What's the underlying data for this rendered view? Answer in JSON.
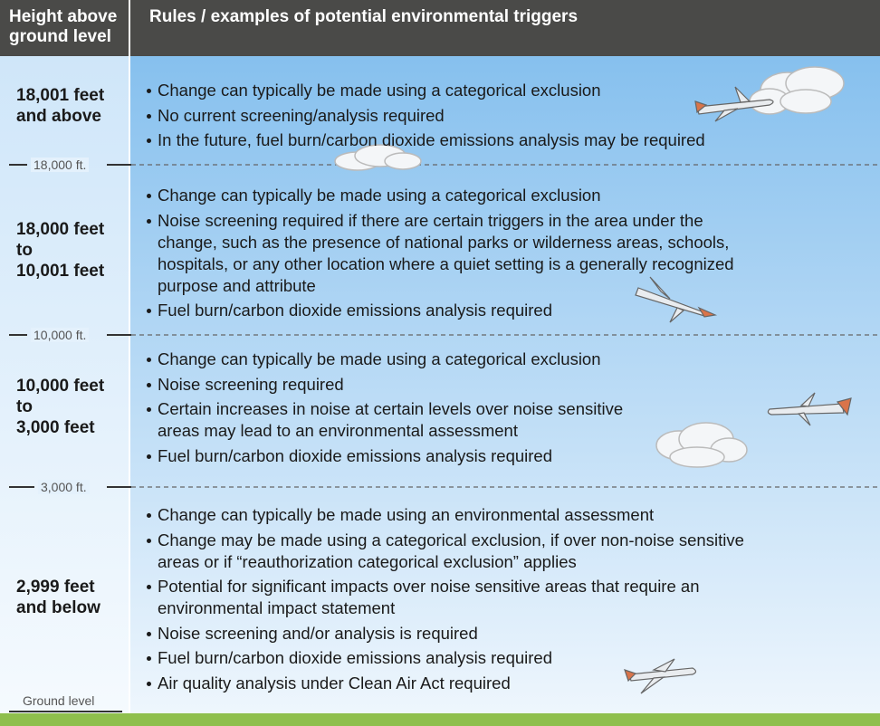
{
  "header": {
    "height_column": [
      "Height above",
      "ground level"
    ],
    "rules_column": "Rules / examples of potential environmental triggers"
  },
  "rows": [
    {
      "height": [
        "18,001 feet",
        "and above"
      ],
      "bullets": [
        [
          "Change can typically be made using a categorical exclusion"
        ],
        [
          "No current screening/analysis required"
        ],
        [
          "In the future, fuel burn/carbon dioxide emissions analysis may be required"
        ]
      ]
    },
    {
      "height": [
        "18,000 feet",
        "to",
        "10,001 feet"
      ],
      "bullets": [
        [
          "Change can typically be made using a categorical exclusion"
        ],
        [
          "Noise screening required if there are certain triggers in the area under the",
          "change, such as the presence of national parks or wilderness areas, schools,",
          "hospitals, or any other location where a quiet setting is a generally recognized",
          "purpose and attribute"
        ],
        [
          "Fuel burn/carbon dioxide emissions analysis required"
        ]
      ]
    },
    {
      "height": [
        "10,000 feet",
        "to",
        "3,000 feet"
      ],
      "bullets": [
        [
          "Change can typically be made using a categorical exclusion"
        ],
        [
          "Noise screening required"
        ],
        [
          "Certain increases in noise at certain levels over noise sensitive",
          "areas may lead to an environmental assessment"
        ],
        [
          "Fuel burn/carbon dioxide emissions analysis required"
        ]
      ]
    },
    {
      "height": [
        "2,999 feet",
        "and below"
      ],
      "bullets": [
        [
          "Change can typically be made using an environmental assessment"
        ],
        [
          "Change may be made using a categorical exclusion, if over non-noise sensitive",
          "areas or if “reauthorization categorical exclusion” applies"
        ],
        [
          "Potential for significant impacts over noise sensitive areas that require an",
          "environmental impact statement"
        ],
        [
          "Noise screening and/or analysis is required"
        ],
        [
          "Fuel burn/carbon dioxide emissions analysis required"
        ],
        [
          "Air quality analysis under Clean Air Act required"
        ]
      ]
    }
  ],
  "boundaries": [
    "18,000 ft.",
    "10,000 ft.",
    "3,000 ft.",
    "Ground level"
  ]
}
